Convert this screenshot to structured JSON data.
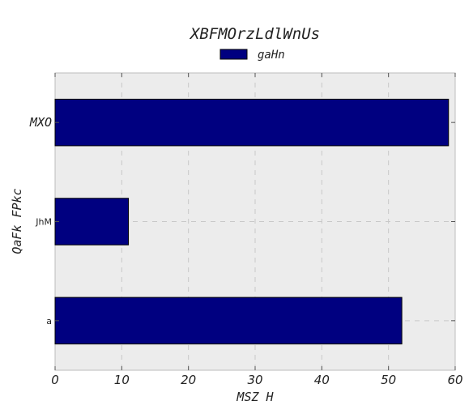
{
  "chart_data": {
    "type": "bar",
    "orientation": "horizontal",
    "title": "XBFMOrzLdlWnUs",
    "xlabel": "MSZ H",
    "ylabel": "QaFk FPkc",
    "categories": [
      "MXO",
      "JhM",
      "a"
    ],
    "series": [
      {
        "name": "gaHn",
        "values": [
          59,
          11,
          52
        ],
        "color": "#000080"
      }
    ],
    "xlim": [
      0,
      60
    ],
    "xticks": [
      0,
      10,
      20,
      30,
      40,
      50,
      60
    ],
    "grid": true,
    "legend": "top-center",
    "background": "#ececec"
  }
}
